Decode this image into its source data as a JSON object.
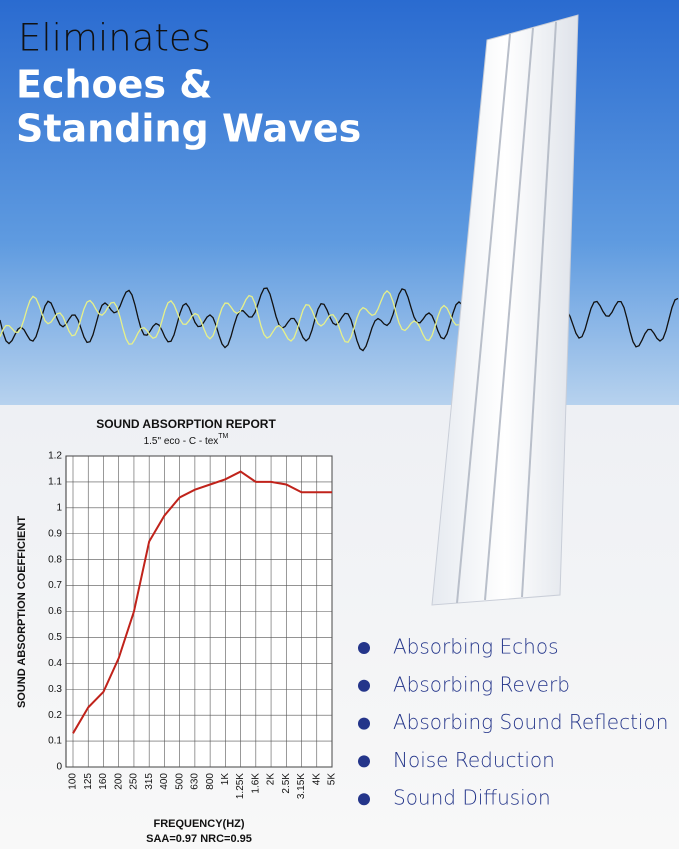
{
  "header": {
    "lines": [
      "Eliminates",
      "Echoes &",
      "Standing Waves"
    ]
  },
  "chart_data": {
    "type": "line",
    "title": "SOUND ABSORPTION REPORT",
    "subtitle": "1.5\" eco - C - tex",
    "subtitle_superscript": "TM",
    "x_label": "FREQUENCY(HZ)",
    "y_label": "SOUND ABSORPTION COEFFICIENT",
    "footer": "SAA=0.97 NRC=0.95",
    "categories": [
      "100",
      "125",
      "160",
      "200",
      "250",
      "315",
      "400",
      "500",
      "630",
      "800",
      "1K",
      "1.25K",
      "1.6K",
      "2K",
      "2.5K",
      "3.15K",
      "4K",
      "5K"
    ],
    "values": [
      0.13,
      0.23,
      0.29,
      0.42,
      0.6,
      0.87,
      0.97,
      1.04,
      1.07,
      1.09,
      1.11,
      1.14,
      1.1,
      1.1,
      1.09,
      1.06,
      1.06,
      1.06
    ],
    "color": "#c0231b",
    "ylim": [
      0,
      1.2
    ],
    "yticks": [
      0,
      0.1,
      0.2,
      0.3,
      0.4,
      0.5,
      0.6,
      0.7,
      0.8,
      0.9,
      1,
      1.1,
      1.2
    ],
    "grid": true
  },
  "features": [
    "Absorbing Echos",
    "Absorbing Reverb",
    "Absorbing Sound Reflection",
    "Noise Reduction",
    "Sound Diffusion"
  ]
}
